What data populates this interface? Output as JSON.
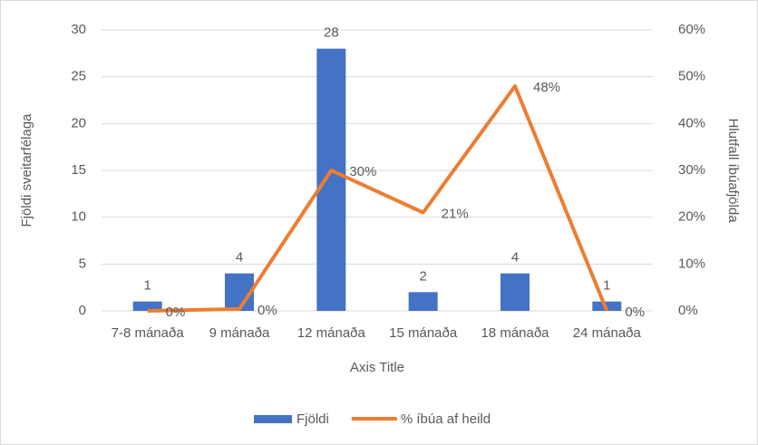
{
  "chart_data": {
    "type": "bar-line",
    "categories": [
      "7-8 mánaða",
      "9 mánaða",
      "12 mánaða",
      "15 mánaða",
      "18 mánaða",
      "24 mánaða"
    ],
    "series": [
      {
        "name": "Fjöldi",
        "type": "bar",
        "color": "#4472c4",
        "values": [
          1,
          4,
          28,
          2,
          4,
          1
        ]
      },
      {
        "name": "% íbúa af heild",
        "type": "line",
        "axis": "y2",
        "color": "#ed7d31",
        "values": [
          0,
          0.4,
          30,
          21,
          48,
          0
        ],
        "value_labels": [
          "0%",
          "0%",
          "30%",
          "21%",
          "48%",
          "0%"
        ]
      }
    ],
    "ylim": [
      0,
      30
    ],
    "yticks": [
      0,
      5,
      10,
      15,
      20,
      25,
      30
    ],
    "y2lim": [
      0,
      60
    ],
    "y2ticks": [
      {
        "value": 0,
        "label": "0%"
      },
      {
        "value": 10,
        "label": "10%"
      },
      {
        "value": 20,
        "label": "20%"
      },
      {
        "value": 30,
        "label": "30%"
      },
      {
        "value": 40,
        "label": "40%"
      },
      {
        "value": 50,
        "label": "50%"
      },
      {
        "value": 60,
        "label": "60%"
      }
    ],
    "ylabel": "Fjöldi sveitarfélaga",
    "y2label": "Hlutfall íbúafjölda",
    "xlabel": "Axis Title",
    "grid": true,
    "legend": "bottom"
  }
}
